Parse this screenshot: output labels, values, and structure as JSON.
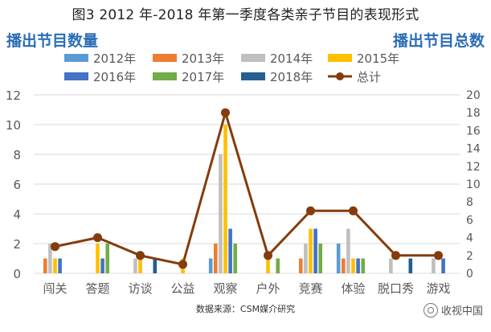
{
  "title": "图3 2012 年-2018 年第一季度各类亲子节目的表现形式",
  "source_note": "数据来源：CSM媒介研究",
  "watermark_left": "",
  "watermark_right": "收视中国",
  "chart_data": {
    "type": "bar",
    "categories": [
      "闯关",
      "答题",
      "访谈",
      "公益",
      "观察",
      "户外",
      "竞赛",
      "体验",
      "脱口秀",
      "游戏"
    ],
    "ylabel_left": "播出节目数量",
    "ylabel_right": "播出节目总数",
    "ylim": [
      0,
      12
    ],
    "y2lim": [
      0,
      20
    ],
    "yticks": [
      0,
      2,
      4,
      6,
      8,
      10,
      12
    ],
    "y2ticks": [
      0,
      2,
      4,
      6,
      8,
      10,
      12,
      14,
      16,
      18,
      20
    ],
    "grid": true,
    "legend_position": "top",
    "series": [
      {
        "name": "2012年",
        "color": "#5b9bd5",
        "values": [
          0,
          0,
          0,
          0,
          1,
          0,
          0,
          2,
          0,
          0
        ]
      },
      {
        "name": "2013年",
        "color": "#ed7d31",
        "values": [
          1,
          0,
          0,
          0,
          2,
          0,
          1,
          1,
          0,
          0
        ]
      },
      {
        "name": "2014年",
        "color": "#bfbfbf",
        "values": [
          2,
          0,
          1,
          0,
          8,
          0,
          2,
          3,
          1,
          1
        ]
      },
      {
        "name": "2015年",
        "color": "#ffc000",
        "values": [
          1,
          2,
          1,
          1,
          10,
          1,
          3,
          1,
          0,
          0
        ]
      },
      {
        "name": "2016年",
        "color": "#4472c4",
        "values": [
          1,
          1,
          0,
          0,
          3,
          0,
          3,
          1,
          0,
          1
        ]
      },
      {
        "name": "2017年",
        "color": "#70ad47",
        "values": [
          0,
          2,
          0,
          0,
          2,
          1,
          2,
          1,
          0,
          0
        ]
      },
      {
        "name": "2018年",
        "color": "#255e91",
        "values": [
          0,
          0,
          1,
          0,
          0,
          0,
          0,
          0,
          1,
          0
        ]
      }
    ],
    "total": {
      "name": "总计",
      "color": "#843c0c",
      "axis": "right",
      "values": [
        3,
        4,
        2,
        1,
        18,
        2,
        7,
        7,
        2,
        2
      ]
    }
  }
}
